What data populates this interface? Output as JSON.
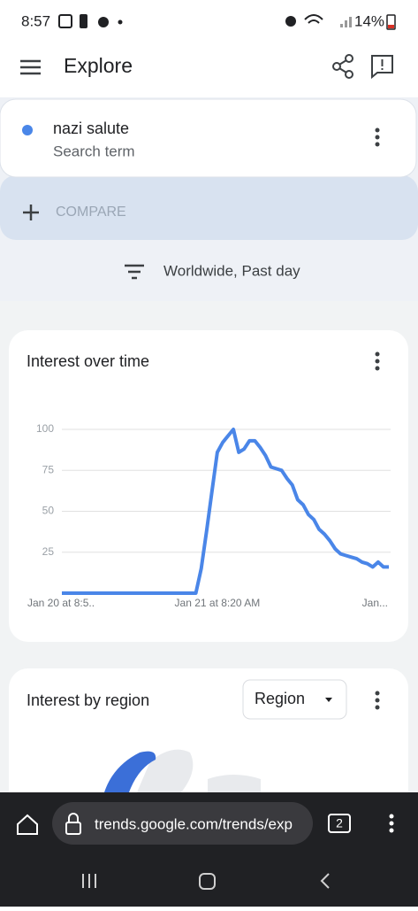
{
  "status_bar": {
    "time": "8:57",
    "battery": "14%"
  },
  "header": {
    "title": "Explore"
  },
  "search": {
    "term": "nazi salute",
    "label": "Search term"
  },
  "compare": {
    "label": "COMPARE"
  },
  "filter": {
    "label": "Worldwide, Past day"
  },
  "chart_data": {
    "type": "line",
    "title": "Interest over time",
    "categories": [
      "Jan 20 at 8:5..",
      null,
      null,
      null,
      null,
      null,
      null,
      null,
      null,
      null,
      null,
      null,
      null,
      null,
      null,
      null,
      null,
      null,
      null,
      null,
      null,
      null,
      null,
      null,
      null,
      null,
      null,
      null,
      null,
      "Jan 21 at 8:20 AM",
      null,
      null,
      null,
      null,
      null,
      null,
      null,
      null,
      null,
      null,
      null,
      null,
      null,
      null,
      null,
      null,
      null,
      null,
      null,
      null,
      null,
      null,
      null,
      null,
      null,
      null,
      null,
      null,
      null,
      null,
      null,
      "Jan..."
    ],
    "series": [
      {
        "name": "nazi salute",
        "color": "#4a86e8",
        "values": [
          0,
          0,
          0,
          0,
          0,
          0,
          0,
          0,
          0,
          0,
          0,
          0,
          0,
          0,
          0,
          0,
          0,
          0,
          0,
          0,
          0,
          0,
          0,
          0,
          0,
          0,
          15,
          38,
          62,
          86,
          92,
          96,
          100,
          86,
          88,
          93,
          93,
          89,
          84,
          77,
          76,
          75,
          70,
          66,
          57,
          54,
          48,
          45,
          39,
          36,
          32,
          27,
          24,
          23,
          22,
          21,
          19,
          18,
          16,
          19,
          16,
          16
        ]
      }
    ],
    "ylim": [
      0,
      100
    ],
    "yticks": [
      25,
      50,
      75,
      100
    ],
    "grid": true
  },
  "region": {
    "title": "Interest by region",
    "dropdown": "Region"
  },
  "browser": {
    "url": "trends.google.com/trends/exp",
    "tabs": "2"
  }
}
